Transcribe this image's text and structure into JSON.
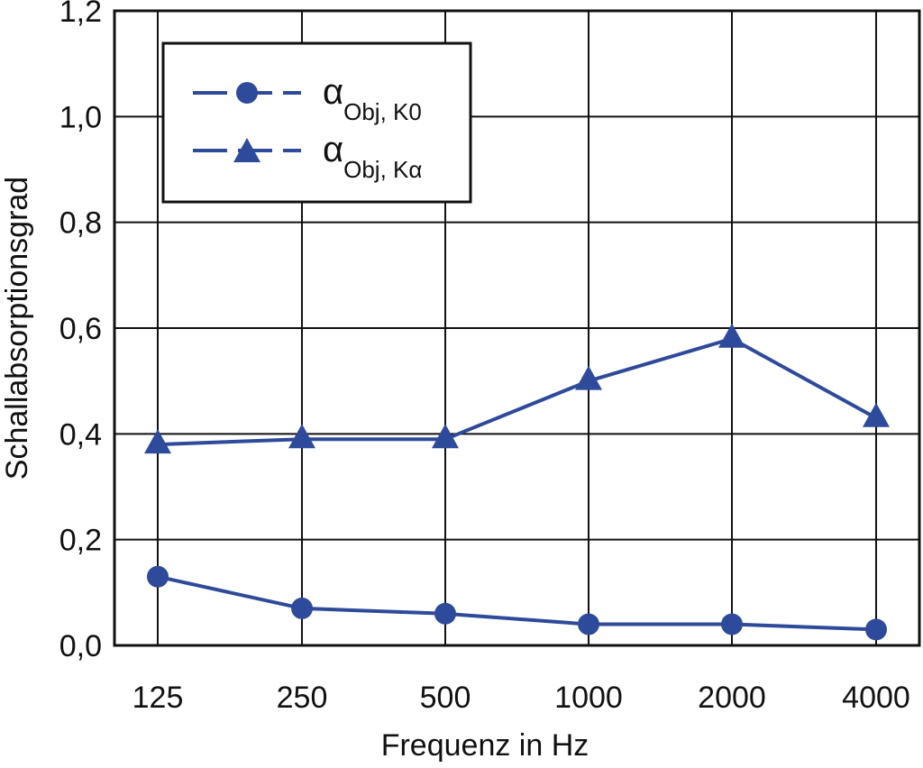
{
  "chart_data": {
    "type": "line",
    "title": "",
    "xlabel": "Frequenz in Hz",
    "ylabel": "Schallabsorptionsgrad",
    "categories": [
      "125",
      "250",
      "500",
      "1000",
      "2000",
      "4000"
    ],
    "yticks": [
      "0,0",
      "0,2",
      "0,4",
      "0,6",
      "0,8",
      "1,0",
      "1,2"
    ],
    "ylim": [
      0,
      1.2
    ],
    "grid": true,
    "legend_position": "top-left",
    "series": [
      {
        "name": "α Obj, K0",
        "symbol": "α",
        "subscript": "Obj, K0",
        "marker": "circle",
        "color": "#2e4a9a",
        "values": [
          0.13,
          0.07,
          0.06,
          0.04,
          0.04,
          0.03
        ]
      },
      {
        "name": "α Obj, Kα",
        "symbol": "α",
        "subscript": "Obj, Kα",
        "marker": "triangle",
        "color": "#2e4a9a",
        "values": [
          0.38,
          0.39,
          0.39,
          0.5,
          0.58,
          0.43
        ]
      }
    ]
  }
}
